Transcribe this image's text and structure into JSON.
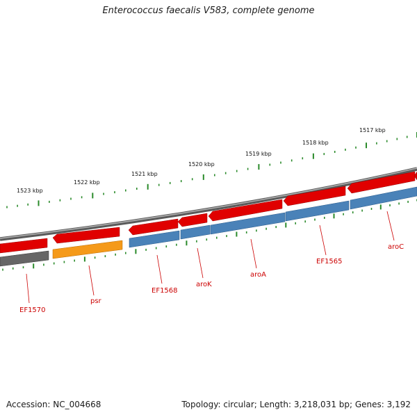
{
  "title": "Enterococcus faecalis V583, complete genome",
  "footer": {
    "accession": "Accession: NC_004668",
    "summary": "Topology: circular; Length: 3,218,031 bp; Genes: 3,192"
  },
  "colors": {
    "backbone": "#888888",
    "forward_cds": "#e00000",
    "reverse_cds": "#4a82b8",
    "highlight": "#f59a1a",
    "pseudo": "#666666",
    "ruler": "#2a8a2a",
    "label": "#cc0000"
  },
  "kbp_labels": [
    "1523 kbp",
    "1522 kbp",
    "1521 kbp",
    "1520 kbp",
    "1519 kbp",
    "1518 kbp",
    "1517 kbp"
  ],
  "gene_labels": [
    "EF1570",
    "psr",
    "EF1568",
    "aroK",
    "aroA",
    "EF1565",
    "aroC"
  ]
}
